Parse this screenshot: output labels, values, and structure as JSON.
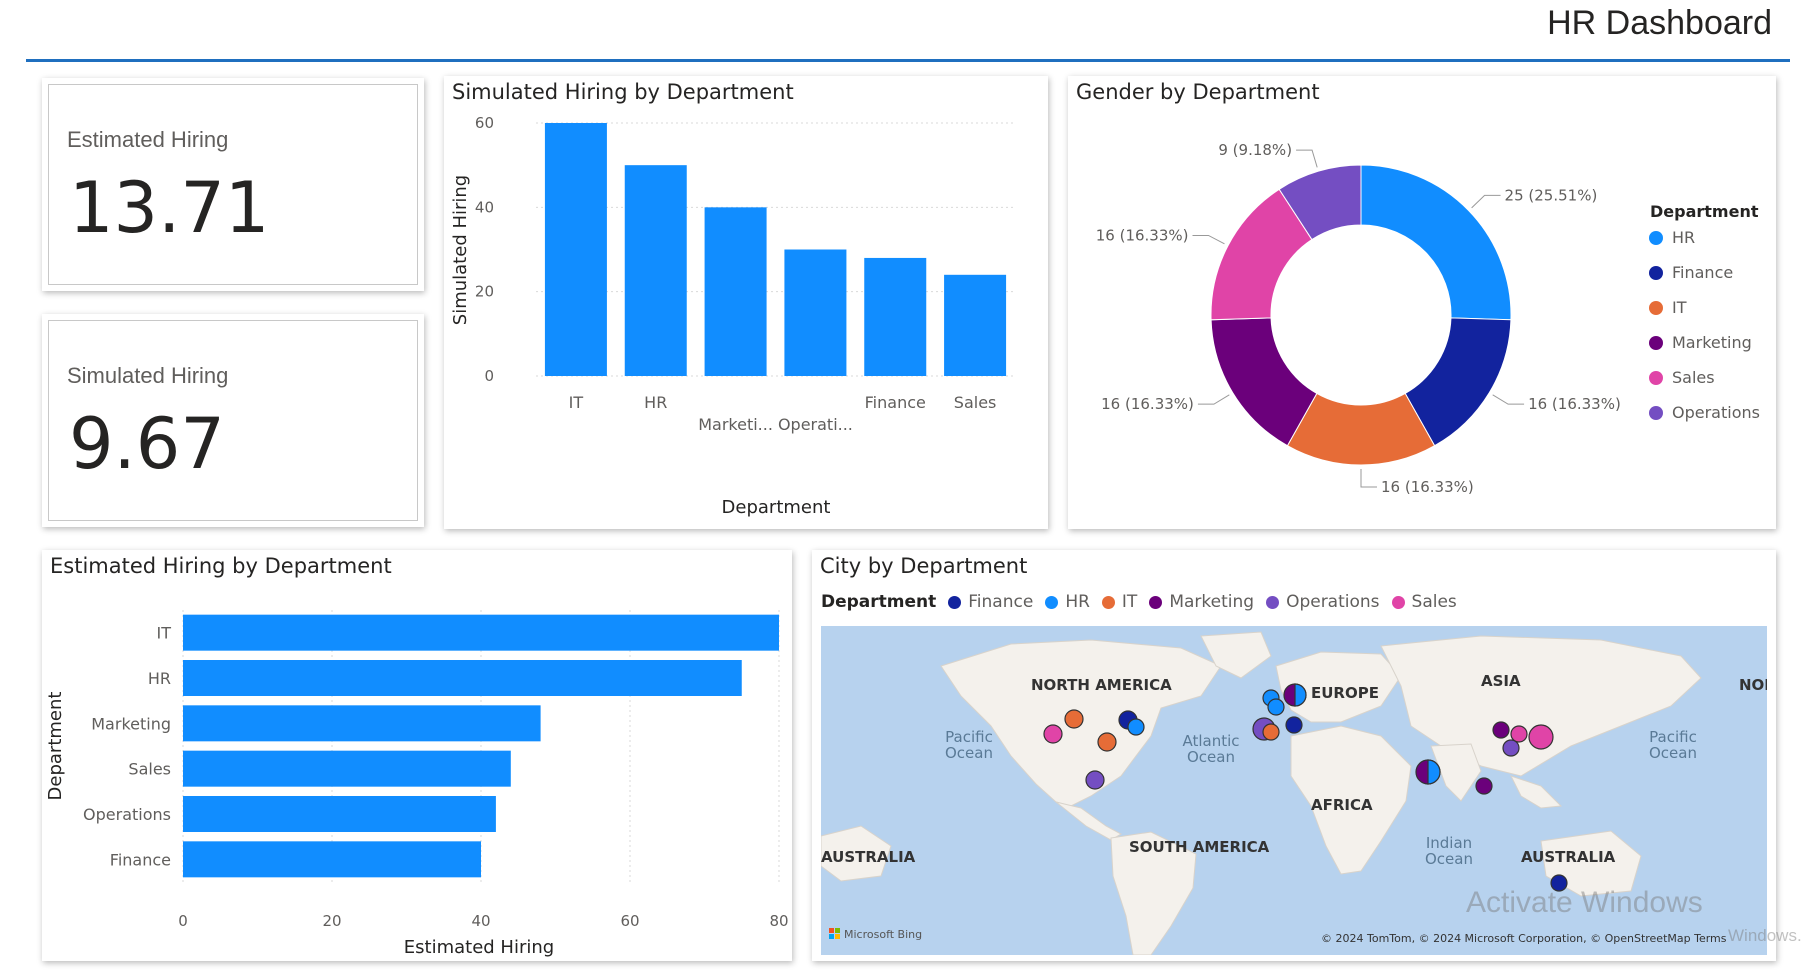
{
  "header": {
    "title": "HR Dashboard"
  },
  "kpis": [
    {
      "label": "Estimated Hiring",
      "value": "13.71"
    },
    {
      "label": "Simulated Hiring",
      "value": "9.67"
    }
  ],
  "colors": {
    "bar": "#118dff",
    "HR": "#118dff",
    "Finance": "#12239e",
    "IT": "#e66c37",
    "Marketing": "#6b007b",
    "Sales": "#e044a7",
    "Operations": "#744ec2"
  },
  "visuals": {
    "simulated_title": "Simulated Hiring by Department",
    "gender_title": "Gender by Department",
    "estimated_title": "Estimated Hiring by Department",
    "city_title": "City by Department"
  },
  "chart_data": [
    {
      "type": "bar",
      "title": "Simulated Hiring by Department",
      "xlabel": "Department",
      "ylabel": "Simulated Hiring",
      "categories": [
        "IT",
        "HR",
        "Marketi...",
        "Operati...",
        "Finance",
        "Sales"
      ],
      "values": [
        60,
        50,
        40,
        30,
        28,
        24
      ],
      "yticks": [
        "0",
        "20",
        "40",
        "60"
      ],
      "ylim": [
        0,
        60
      ]
    },
    {
      "type": "pie",
      "title": "Gender by Department",
      "legend_title": "Department",
      "legend": [
        "HR",
        "Finance",
        "IT",
        "Marketing",
        "Sales",
        "Operations"
      ],
      "slices": [
        {
          "name": "HR",
          "value": 25,
          "label": "25 (25.51%)"
        },
        {
          "name": "Finance",
          "value": 16,
          "label": "16 (16.33%)"
        },
        {
          "name": "IT",
          "value": 16,
          "label": "16 (16.33%)"
        },
        {
          "name": "Marketing",
          "value": 16,
          "label": "16 (16.33%)"
        },
        {
          "name": "Sales",
          "value": 16,
          "label": "16 (16.33%)"
        },
        {
          "name": "Operations",
          "value": 9,
          "label": "9 (9.18%)"
        }
      ]
    },
    {
      "type": "bar",
      "title": "Estimated Hiring by Department",
      "xlabel": "Estimated Hiring",
      "ylabel": "Department",
      "categories": [
        "IT",
        "HR",
        "Marketing",
        "Sales",
        "Operations",
        "Finance"
      ],
      "values": [
        80,
        75,
        48,
        44,
        42,
        40
      ],
      "xticks": [
        "0",
        "20",
        "40",
        "60",
        "80"
      ],
      "xlim": [
        0,
        80
      ]
    }
  ],
  "map": {
    "legend_label": "Department",
    "legend": [
      "Finance",
      "HR",
      "IT",
      "Marketing",
      "Operations",
      "Sales"
    ],
    "labels": {
      "north_america": "NORTH AMERICA",
      "europe": "EUROPE",
      "asia": "ASIA",
      "africa": "AFRICA",
      "south_america": "SOUTH AMERICA",
      "australia_left": "AUSTRALIA",
      "australia": "AUSTRALIA",
      "nor": "NOF",
      "pacific1": "Pacific",
      "ocean1": "Ocean",
      "atlantic": "Atlantic",
      "ocean2": "Ocean",
      "pacific2": "Pacific",
      "ocean3": "Ocean",
      "indian": "Indian",
      "ocean4": "Ocean"
    },
    "branding": "Microsoft Bing",
    "copyright": "© 2024 TomTom, © 2024 Microsoft Corporation, © OpenStreetMap  Terms"
  },
  "watermark": {
    "line1": "Activate Windows",
    "line2": "Windows."
  }
}
